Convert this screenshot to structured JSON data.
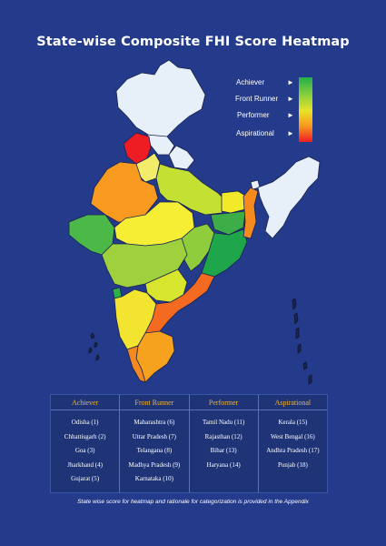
{
  "title": "State-wise Composite FHI Score Heatmap",
  "legend": {
    "items": [
      {
        "label": "Achiever",
        "color": "#1fb04a"
      },
      {
        "label": "Front Runner",
        "color": "#8ccf3c"
      },
      {
        "label": "Performer",
        "color": "#e8e32a"
      },
      {
        "label": "Aspirational",
        "color": "#ee1c23"
      }
    ],
    "arrow": "►"
  },
  "colors": {
    "background": "#243a8a",
    "ladakh_jk": "#e7f0f8",
    "header_gold": "#f0b43a"
  },
  "table": {
    "columns": [
      {
        "header": "Achiever",
        "items": [
          "Odisha (1)",
          "Chhattisgarh (2)",
          "Goa (3)",
          "Jharkhand (4)",
          "Gujarat (5)"
        ]
      },
      {
        "header": "Front Runner",
        "items": [
          "Maharashtra (6)",
          "Uttar Pradesh (7)",
          "Telangana (8)",
          "Madhya Pradesh (9)",
          "Karnataka (10)"
        ]
      },
      {
        "header": "Performer",
        "items": [
          "Tamil Nadu (11)",
          "Rajasthan (12)",
          "Bihar (13)",
          "Haryana (14)"
        ]
      },
      {
        "header": "Aspirational",
        "items": [
          "Kerala (15)",
          "West Bengal (16)",
          "Andhra Pradesh (17)",
          "Punjab (18)"
        ]
      }
    ]
  },
  "footnote": "State wise score for heatmap and rationale for categorization is provided in the Appendix"
}
